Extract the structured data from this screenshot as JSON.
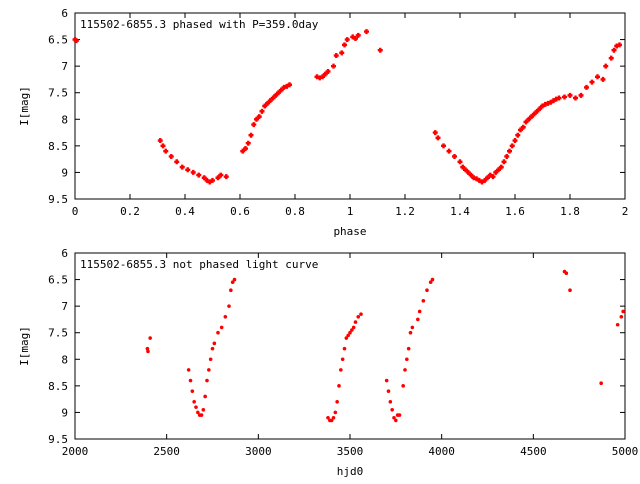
{
  "chart_data": [
    {
      "type": "scatter",
      "title": "115502-6855.3 phased with P=359.0day",
      "xlabel": "phase",
      "ylabel": "I[mag]",
      "xlim": [
        0,
        2
      ],
      "ylim": [
        6,
        9.5
      ],
      "y_inverted": true,
      "grid": false,
      "xticks": [
        0,
        0.2,
        0.4,
        0.6,
        0.8,
        1,
        1.2,
        1.4,
        1.6,
        1.8,
        2
      ],
      "xtick_labels": [
        "0",
        "0.2",
        "0.4",
        "0.6",
        "0.8",
        "1",
        "1.2",
        "1.4",
        "1.6",
        "1.8",
        "2"
      ],
      "yticks": [
        6,
        6.5,
        7,
        7.5,
        8,
        8.5,
        9,
        9.5
      ],
      "ytick_labels": [
        "6",
        "6.5",
        "7",
        "7.5",
        "8",
        "8.5",
        "9",
        "9.5"
      ],
      "marker": "plus",
      "color": "#ff0000",
      "series": [
        {
          "x": [
            0.0,
            0.005,
            0.31,
            0.32,
            0.33,
            0.35,
            0.37,
            0.39,
            0.41,
            0.43,
            0.45,
            0.47,
            0.48,
            0.49,
            0.5,
            0.52,
            0.53,
            0.55,
            0.61,
            0.62,
            0.63,
            0.64,
            0.65,
            0.66,
            0.67,
            0.68,
            0.69,
            0.7,
            0.71,
            0.72,
            0.73,
            0.74,
            0.75,
            0.76,
            0.77,
            0.78,
            0.88,
            0.89,
            0.9,
            0.91,
            0.92,
            0.94,
            0.95,
            0.97,
            0.98,
            0.99,
            1.01,
            1.02,
            1.03,
            1.06,
            1.11,
            1.31,
            1.32,
            1.34,
            1.36,
            1.38,
            1.4,
            1.41,
            1.42,
            1.43,
            1.44,
            1.45,
            1.46,
            1.47,
            1.48,
            1.49,
            1.5,
            1.51,
            1.52,
            1.53,
            1.54,
            1.55,
            1.56,
            1.57,
            1.58,
            1.59,
            1.6,
            1.61,
            1.62,
            1.63,
            1.64,
            1.65,
            1.66,
            1.67,
            1.68,
            1.69,
            1.7,
            1.71,
            1.72,
            1.73,
            1.74,
            1.75,
            1.76,
            1.78,
            1.8,
            1.82,
            1.84,
            1.86,
            1.88,
            1.9,
            1.92,
            1.93,
            1.95,
            1.96,
            1.97,
            1.98
          ],
          "y": [
            6.5,
            6.52,
            8.4,
            8.5,
            8.6,
            8.7,
            8.8,
            8.9,
            8.95,
            9.0,
            9.05,
            9.1,
            9.15,
            9.18,
            9.15,
            9.1,
            9.05,
            9.08,
            8.6,
            8.55,
            8.45,
            8.3,
            8.1,
            8.0,
            7.95,
            7.85,
            7.75,
            7.7,
            7.65,
            7.6,
            7.55,
            7.5,
            7.45,
            7.4,
            7.38,
            7.35,
            7.2,
            7.22,
            7.2,
            7.15,
            7.1,
            7.0,
            6.8,
            6.75,
            6.6,
            6.5,
            6.45,
            6.48,
            6.42,
            6.35,
            6.7,
            8.25,
            8.35,
            8.5,
            8.6,
            8.7,
            8.8,
            8.9,
            8.95,
            9.0,
            9.05,
            9.1,
            9.12,
            9.15,
            9.18,
            9.15,
            9.1,
            9.05,
            9.08,
            9.0,
            8.95,
            8.9,
            8.8,
            8.7,
            8.6,
            8.5,
            8.4,
            8.3,
            8.2,
            8.15,
            8.05,
            8.0,
            7.95,
            7.9,
            7.85,
            7.8,
            7.75,
            7.72,
            7.7,
            7.68,
            7.65,
            7.62,
            7.6,
            7.58,
            7.55,
            7.6,
            7.55,
            7.4,
            7.3,
            7.2,
            7.25,
            7.0,
            6.85,
            6.7,
            6.62,
            6.6
          ]
        }
      ]
    },
    {
      "type": "scatter",
      "title": "115502-6855.3 not phased light curve",
      "xlabel": "hjd0",
      "ylabel": "I[mag]",
      "xlim": [
        2000,
        5000
      ],
      "ylim": [
        6,
        9.5
      ],
      "y_inverted": true,
      "grid": false,
      "xticks": [
        2000,
        2500,
        3000,
        3500,
        4000,
        4500,
        5000
      ],
      "xtick_labels": [
        "2000",
        "2500",
        "3000",
        "3500",
        "4000",
        "4500",
        "5000"
      ],
      "yticks": [
        6,
        6.5,
        7,
        7.5,
        8,
        8.5,
        9,
        9.5
      ],
      "ytick_labels": [
        "6",
        "6.5",
        "7",
        "7.5",
        "8",
        "8.5",
        "9",
        "9.5"
      ],
      "marker": "dot",
      "color": "#ff0000",
      "series": [
        {
          "x": [
            2395,
            2398,
            2410,
            2620,
            2630,
            2640,
            2650,
            2660,
            2670,
            2680,
            2690,
            2700,
            2710,
            2720,
            2730,
            2740,
            2750,
            2760,
            2780,
            2800,
            2820,
            2840,
            2850,
            2860,
            2870,
            3380,
            3390,
            3400,
            3410,
            3420,
            3430,
            3440,
            3450,
            3460,
            3470,
            3480,
            3490,
            3500,
            3510,
            3520,
            3530,
            3545,
            3560,
            3700,
            3710,
            3720,
            3730,
            3740,
            3750,
            3760,
            3770,
            3790,
            3800,
            3810,
            3820,
            3830,
            3840,
            3870,
            3880,
            3900,
            3920,
            3940,
            3950,
            4670,
            4680,
            4700,
            4870,
            4960,
            4980,
            4990
          ],
          "y": [
            7.8,
            7.85,
            7.6,
            8.2,
            8.4,
            8.6,
            8.8,
            8.9,
            9.0,
            9.05,
            9.05,
            8.95,
            8.7,
            8.4,
            8.2,
            8.0,
            7.8,
            7.7,
            7.5,
            7.4,
            7.2,
            7.0,
            6.7,
            6.55,
            6.5,
            9.1,
            9.15,
            9.15,
            9.1,
            9.0,
            8.8,
            8.5,
            8.2,
            8.0,
            7.8,
            7.6,
            7.55,
            7.5,
            7.45,
            7.4,
            7.3,
            7.2,
            7.15,
            8.4,
            8.6,
            8.8,
            8.95,
            9.1,
            9.15,
            9.05,
            9.05,
            8.5,
            8.2,
            8.0,
            7.8,
            7.5,
            7.4,
            7.25,
            7.1,
            6.9,
            6.7,
            6.55,
            6.5,
            6.35,
            6.38,
            6.7,
            8.45,
            7.35,
            7.2,
            7.1
          ]
        }
      ]
    }
  ]
}
